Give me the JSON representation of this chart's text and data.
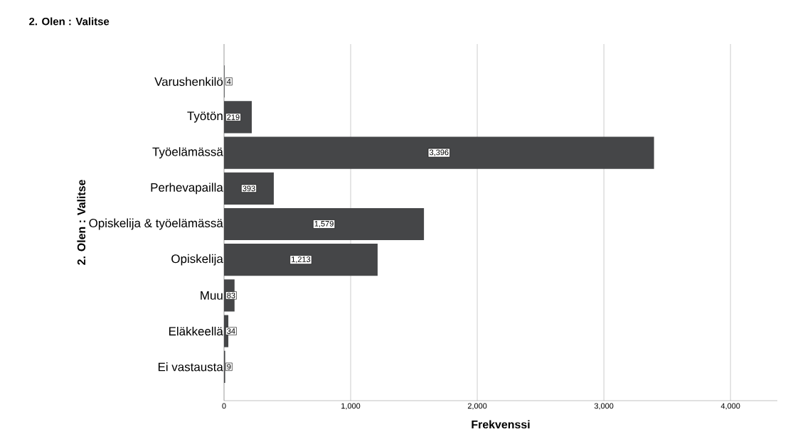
{
  "chart_data": {
    "type": "bar",
    "orientation": "horizontal",
    "title": "2. Olen : Valitse",
    "xlabel": "Frekvenssi",
    "ylabel": "2. Olen : Valitse",
    "categories": [
      "Varushenkilö",
      "Työtön",
      "Työelämässä",
      "Perhevapailla",
      "Opiskelija & työelämässä",
      "Opiskelija",
      "Muu",
      "Eläkkeellä",
      "Ei vastausta"
    ],
    "values": [
      4,
      219,
      3396,
      393,
      1579,
      1213,
      83,
      34,
      9
    ],
    "value_labels": [
      "4",
      "219",
      "3,396",
      "393",
      "1,579",
      "1,213",
      "83",
      "34",
      "9"
    ],
    "color": "#454648",
    "xlim": [
      0,
      4370
    ],
    "xticks": [
      0,
      {
        "value": 1000,
        "label": "1,000"
      },
      {
        "value": 2000,
        "label": "2,000"
      },
      {
        "value": 3000,
        "label": "3,000"
      },
      {
        "value": 4000,
        "label": "4,000"
      }
    ],
    "grid": "x"
  }
}
